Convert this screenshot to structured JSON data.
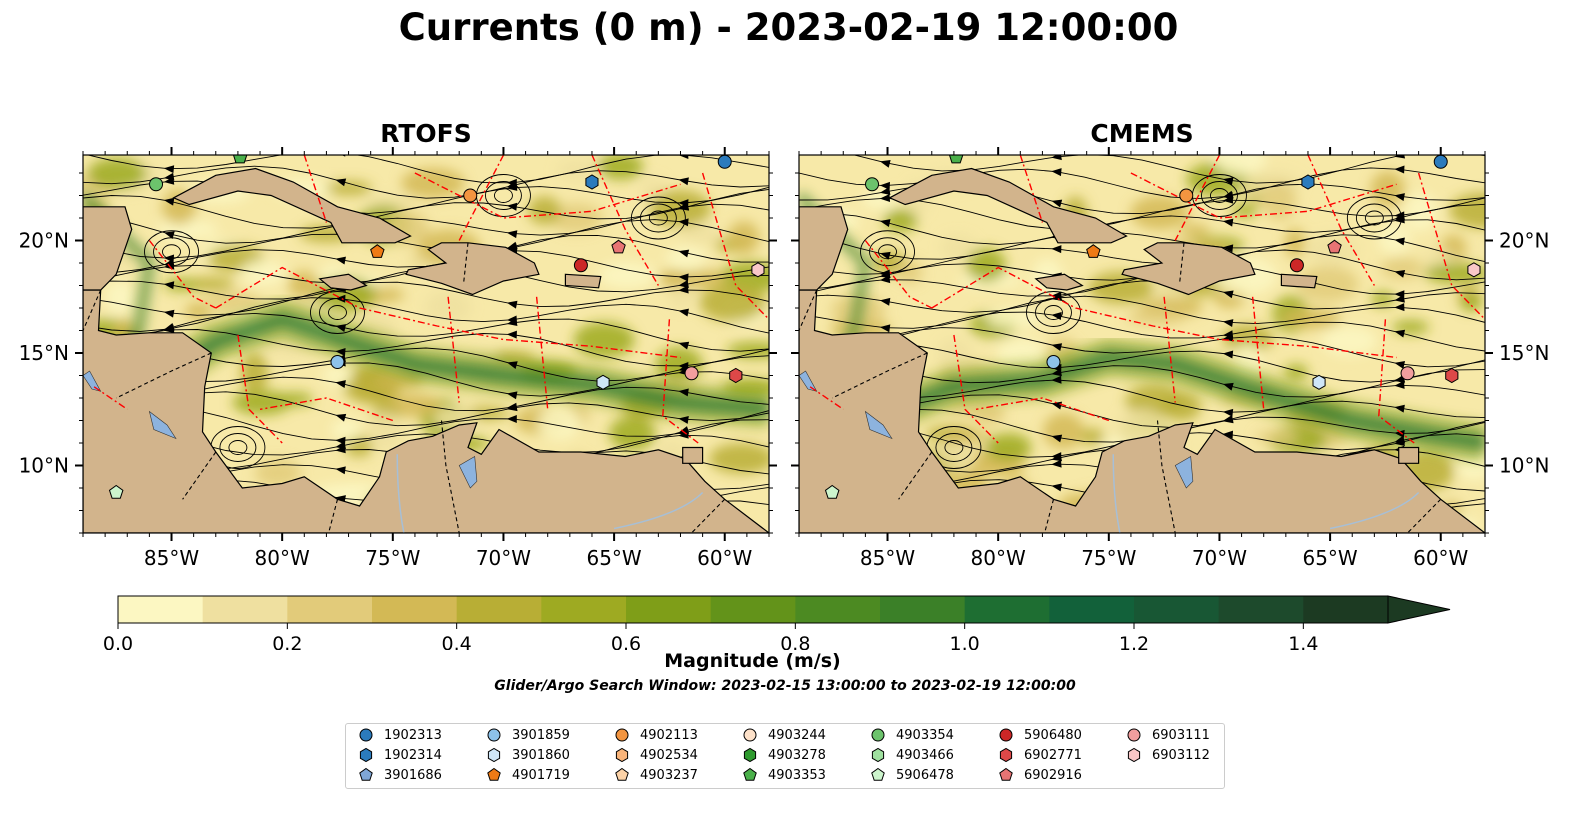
{
  "title": "Currents (0 m) - 2023-02-19 12:00:00",
  "panels": [
    {
      "title": "RTOFS"
    },
    {
      "title": "CMEMS"
    }
  ],
  "axes": {
    "lon_ticks": [
      "85°W",
      "80°W",
      "75°W",
      "70°W",
      "65°W",
      "60°W"
    ],
    "lat_ticks": [
      "20°N",
      "15°N",
      "10°N"
    ],
    "lon_range": [
      -89.0,
      -58.0
    ],
    "lat_range": [
      7.0,
      23.8
    ]
  },
  "colorbar": {
    "label": "Magnitude (m/s)",
    "ticks": [
      "0.0",
      "0.2",
      "0.4",
      "0.6",
      "0.8",
      "1.0",
      "1.2",
      "1.4"
    ],
    "range": [
      0.0,
      1.5
    ],
    "extend": "max",
    "colors": [
      "#fcf7c2",
      "#efe0a0",
      "#e2cb7a",
      "#d3b955",
      "#b8ae35",
      "#9eaa22",
      "#7f9e18",
      "#63931a",
      "#4c8a22",
      "#3b8028",
      "#1e6e32",
      "#12613a",
      "#185734",
      "#1d4a2c",
      "#1c3a22"
    ]
  },
  "colors": {
    "land": "#d2b48c",
    "lakes": "#8db3de",
    "eez": "#ff0000",
    "ocean_low": "#f7e9a8"
  },
  "search_window": "Glider/Argo Search Window: 2023-02-15 13:00:00 to 2023-02-19 12:00:00",
  "legend": {
    "placement": "bottom-center",
    "items": [
      {
        "label": "1902313",
        "shape": "circle",
        "color": "#2b7bbd"
      },
      {
        "label": "1902314",
        "shape": "hexagon",
        "color": "#2b7bbd"
      },
      {
        "label": "3901686",
        "shape": "pentagon",
        "color": "#7fa6d6"
      },
      {
        "label": "3901859",
        "shape": "circle",
        "color": "#8dc2ea"
      },
      {
        "label": "3901860",
        "shape": "hexagon",
        "color": "#cfe6f7"
      },
      {
        "label": "4901719",
        "shape": "pentagon",
        "color": "#ee7a15"
      },
      {
        "label": "4902113",
        "shape": "circle",
        "color": "#f39540"
      },
      {
        "label": "4902534",
        "shape": "hexagon",
        "color": "#f9b47a"
      },
      {
        "label": "4903237",
        "shape": "pentagon",
        "color": "#fcd2a7"
      },
      {
        "label": "4903244",
        "shape": "circle",
        "color": "#fde1c9"
      },
      {
        "label": "4903278",
        "shape": "hexagon",
        "color": "#2e9a2e"
      },
      {
        "label": "4903353",
        "shape": "pentagon",
        "color": "#4ab04a"
      },
      {
        "label": "4903354",
        "shape": "circle",
        "color": "#6cc36c"
      },
      {
        "label": "4903466",
        "shape": "hexagon",
        "color": "#9fe09f"
      },
      {
        "label": "5906478",
        "shape": "pentagon",
        "color": "#cdf5cd"
      },
      {
        "label": "5906480",
        "shape": "circle",
        "color": "#cc2727"
      },
      {
        "label": "6902771",
        "shape": "hexagon",
        "color": "#dd4848"
      },
      {
        "label": "6902916",
        "shape": "pentagon",
        "color": "#e87474"
      },
      {
        "label": "6903111",
        "shape": "circle",
        "color": "#f29e9e"
      },
      {
        "label": "6903112",
        "shape": "hexagon",
        "color": "#f9c8c8"
      }
    ]
  },
  "floats": [
    {
      "label": "1902313",
      "lon": -60.0,
      "lat": 23.5
    },
    {
      "label": "1902314",
      "lon": -66.0,
      "lat": 22.6
    },
    {
      "label": "3901859",
      "lon": -77.5,
      "lat": 14.6
    },
    {
      "label": "3901860",
      "lon": -65.5,
      "lat": 13.7
    },
    {
      "label": "4902113",
      "lon": -71.5,
      "lat": 22.0
    },
    {
      "label": "4901719",
      "lon": -75.7,
      "lat": 19.5
    },
    {
      "label": "4903353",
      "lon": -81.9,
      "lat": 23.7
    },
    {
      "label": "4903354",
      "lon": -85.7,
      "lat": 22.5
    },
    {
      "label": "5906478",
      "lon": -87.5,
      "lat": 8.8
    },
    {
      "label": "5906480",
      "lon": -66.5,
      "lat": 18.9
    },
    {
      "label": "6902916",
      "lon": -64.8,
      "lat": 19.7
    },
    {
      "label": "6903111",
      "lon": -61.5,
      "lat": 14.1
    },
    {
      "label": "6903112",
      "lon": -58.5,
      "lat": 18.7
    },
    {
      "label": "6902771",
      "lon": -59.5,
      "lat": 14.0
    }
  ]
}
